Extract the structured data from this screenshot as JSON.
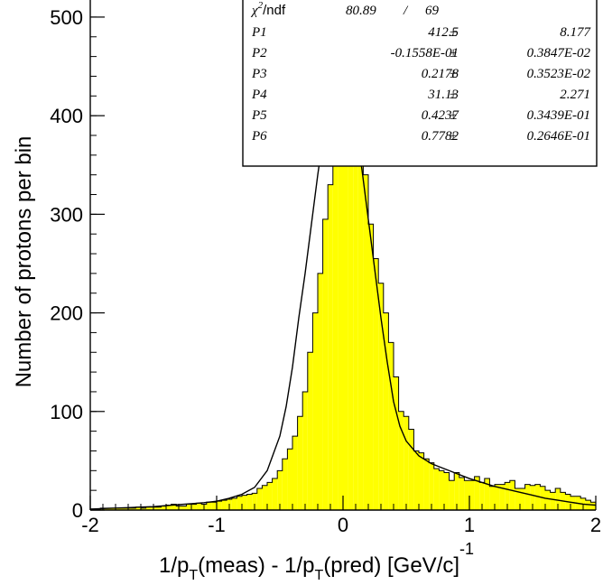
{
  "chart_data": {
    "type": "bar",
    "histogram": true,
    "fill_color": "#ffff00",
    "line_color": "#000000",
    "xlabel": {
      "prefix": "1/p",
      "sub1": "T",
      "mid": "(meas) - 1/p",
      "sub2": "T",
      "tail": "(pred) [GeV/c]",
      "sup": "-1"
    },
    "ylabel": "Number of protons per bin",
    "xlim": [
      -2,
      2
    ],
    "ylim": [
      0,
      510
    ],
    "x_ticks": [
      {
        "value": -2,
        "label": "-2"
      },
      {
        "value": -1,
        "label": "-1"
      },
      {
        "value": 0,
        "label": "0"
      },
      {
        "value": 1,
        "label": "1"
      },
      {
        "value": 2,
        "label": "2"
      }
    ],
    "y_ticks": [
      {
        "value": 0,
        "label": "0"
      },
      {
        "value": 100,
        "label": "100"
      },
      {
        "value": 200,
        "label": "200"
      },
      {
        "value": 300,
        "label": "300"
      },
      {
        "value": 400,
        "label": "400"
      },
      {
        "value": 500,
        "label": "500"
      }
    ],
    "bin_width": 0.04,
    "bin_start": -2.0,
    "values": [
      1,
      1,
      2,
      2,
      2,
      2,
      2,
      2,
      2,
      3,
      2,
      3,
      3,
      3,
      4,
      5,
      6,
      4,
      4,
      6,
      6,
      7,
      6,
      8,
      8,
      9,
      10,
      11,
      12,
      14,
      15,
      16,
      17,
      22,
      25,
      28,
      32,
      40,
      52,
      62,
      75,
      95,
      120,
      160,
      200,
      240,
      295,
      330,
      375,
      400,
      459,
      430,
      400,
      375,
      340,
      290,
      255,
      230,
      200,
      170,
      135,
      100,
      95,
      82,
      60,
      58,
      52,
      48,
      42,
      40,
      38,
      30,
      38,
      33,
      30,
      30,
      34,
      28,
      32,
      24,
      26,
      26,
      28,
      30,
      22,
      22,
      26,
      25,
      26,
      24,
      20,
      18,
      22,
      18,
      16,
      14,
      14,
      12,
      10,
      8
    ],
    "fit_curve": [
      [
        -2.0,
        1
      ],
      [
        -1.9,
        1.5
      ],
      [
        -1.8,
        2
      ],
      [
        -1.7,
        2.5
      ],
      [
        -1.6,
        3
      ],
      [
        -1.5,
        3.5
      ],
      [
        -1.4,
        4.5
      ],
      [
        -1.3,
        5.5
      ],
      [
        -1.2,
        6.5
      ],
      [
        -1.1,
        7.5
      ],
      [
        -1.0,
        9
      ],
      [
        -0.9,
        12
      ],
      [
        -0.8,
        16
      ],
      [
        -0.7,
        23
      ],
      [
        -0.6,
        40
      ],
      [
        -0.5,
        75
      ],
      [
        -0.45,
        105
      ],
      [
        -0.4,
        145
      ],
      [
        -0.35,
        195
      ],
      [
        -0.3,
        240
      ],
      [
        -0.25,
        290
      ],
      [
        -0.2,
        340
      ],
      [
        -0.15,
        385
      ],
      [
        -0.1,
        415
      ],
      [
        -0.05,
        433
      ],
      [
        -0.02,
        438
      ],
      [
        0.0,
        437
      ],
      [
        0.05,
        420
      ],
      [
        0.1,
        390
      ],
      [
        0.15,
        345
      ],
      [
        0.2,
        295
      ],
      [
        0.25,
        245
      ],
      [
        0.3,
        195
      ],
      [
        0.35,
        150
      ],
      [
        0.4,
        110
      ],
      [
        0.45,
        85
      ],
      [
        0.5,
        70
      ],
      [
        0.6,
        55
      ],
      [
        0.7,
        47
      ],
      [
        0.8,
        42
      ],
      [
        0.9,
        37
      ],
      [
        1.0,
        32
      ],
      [
        1.1,
        28
      ],
      [
        1.2,
        24
      ],
      [
        1.3,
        21
      ],
      [
        1.4,
        18
      ],
      [
        1.5,
        15
      ],
      [
        1.6,
        12
      ],
      [
        1.7,
        10
      ],
      [
        1.8,
        8
      ],
      [
        1.9,
        6
      ],
      [
        2.0,
        5
      ]
    ],
    "stats": {
      "chi2_label": "χ",
      "chi2_sup": "2",
      "ndf_label": "/ndf",
      "chi2_value": "80.89",
      "slash": "/",
      "ndf_value": "69",
      "params": [
        {
          "name": "P1",
          "value": "412.5",
          "pm": "±",
          "error": "8.177"
        },
        {
          "name": "P2",
          "value": "-0.1558E-01",
          "pm": "±",
          "error": "0.3847E-02"
        },
        {
          "name": "P3",
          "value": "0.2178",
          "pm": "±",
          "error": "0.3523E-02"
        },
        {
          "name": "P4",
          "value": "31.13",
          "pm": "±",
          "error": "2.271"
        },
        {
          "name": "P5",
          "value": "0.4237",
          "pm": "±",
          "error": "0.3439E-01"
        },
        {
          "name": "P6",
          "value": "0.7782",
          "pm": "±",
          "error": "0.2646E-01"
        }
      ]
    }
  }
}
